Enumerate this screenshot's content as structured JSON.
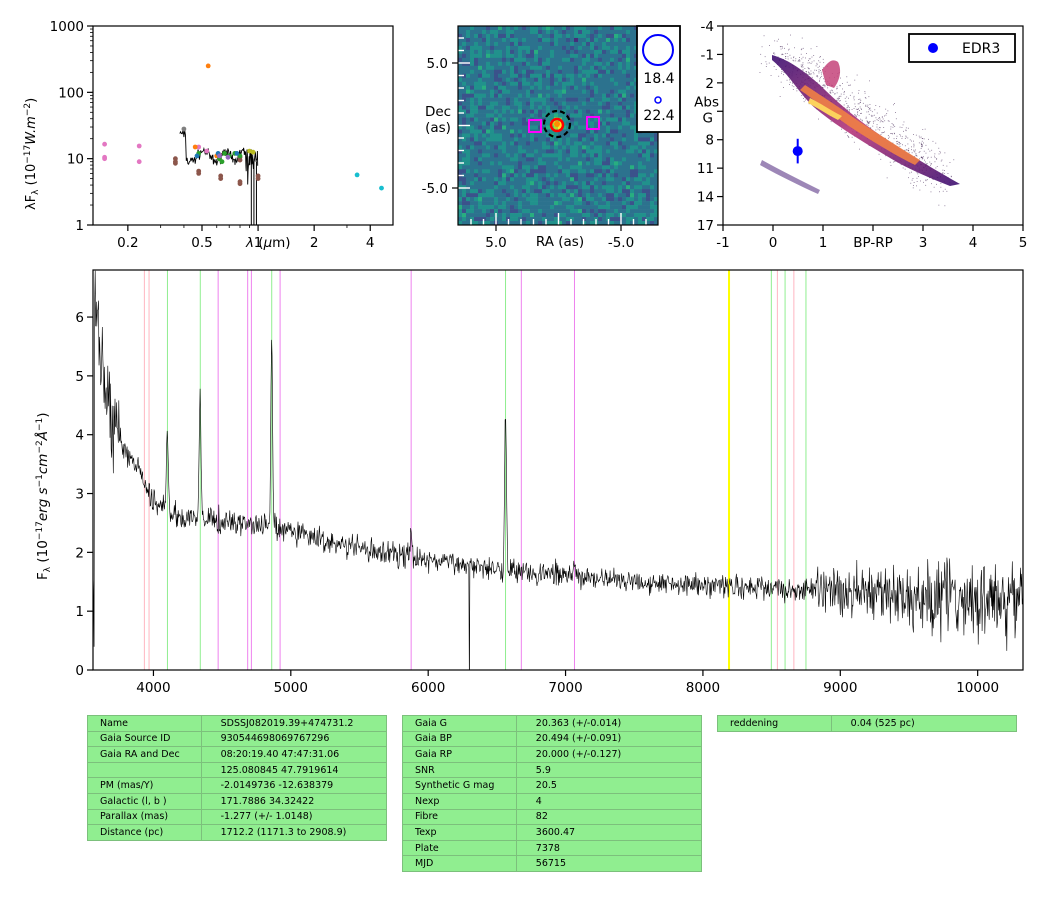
{
  "chart_data": [
    {
      "type": "scatter",
      "xscale": "log",
      "yscale": "log",
      "xlabel": "λ (μm)",
      "ylabel": "λF_λ (10^-17 W.m^-2)",
      "xlim": [
        0.13,
        5.3
      ],
      "ylim": [
        1,
        1000
      ],
      "x_ticks": [
        "0.2",
        "0.5",
        "1",
        "2",
        "4"
      ],
      "y_ticks": [
        "1",
        "10",
        "100",
        "1000"
      ],
      "series": [
        {
          "color": "#e377c2",
          "points": [
            [
              0.15,
              16.5
            ],
            [
              0.15,
              10.5
            ],
            [
              0.15,
              10
            ],
            [
              0.23,
              15.5
            ],
            [
              0.23,
              9
            ],
            [
              0.48,
              15
            ],
            [
              0.53,
              13
            ],
            [
              0.62,
              11.5
            ]
          ]
        },
        {
          "color": "#8c564b",
          "points": [
            [
              0.36,
              10
            ],
            [
              0.36,
              9
            ],
            [
              0.36,
              8.5
            ],
            [
              0.48,
              6.5
            ],
            [
              0.48,
              6
            ],
            [
              0.63,
              5.5
            ],
            [
              0.63,
              5
            ],
            [
              0.8,
              4.5
            ],
            [
              0.8,
              4.2
            ],
            [
              1.0,
              5.5
            ],
            [
              1.0,
              5
            ],
            [
              0.62,
              10
            ],
            [
              0.8,
              10.5
            ],
            [
              0.8,
              9.5
            ]
          ]
        },
        {
          "color": "#7f7f7f",
          "points": [
            [
              0.4,
              28
            ]
          ]
        },
        {
          "color": "#ff7f0e",
          "points": [
            [
              0.54,
              250
            ],
            [
              0.46,
              15
            ],
            [
              0.6,
              11
            ]
          ]
        },
        {
          "color": "#2ca02c",
          "points": [
            [
              0.48,
              12
            ],
            [
              0.62,
              10
            ],
            [
              0.66,
              12
            ],
            [
              0.7,
              11
            ],
            [
              0.75,
              12
            ],
            [
              0.8,
              11
            ],
            [
              0.64,
              9
            ]
          ]
        },
        {
          "color": "#1f77b4",
          "points": [
            [
              0.47,
              11
            ],
            [
              0.61,
              12
            ],
            [
              0.77,
              12
            ]
          ]
        },
        {
          "color": "#9467bd",
          "points": [
            [
              0.62,
              11
            ],
            [
              0.69,
              10.5
            ]
          ]
        },
        {
          "color": "#bcbd22",
          "points": [
            [
              0.9,
              13
            ],
            [
              0.94,
              12.5
            ]
          ]
        },
        {
          "color": "#17becf",
          "points": [
            [
              3.4,
              5.7
            ],
            [
              4.6,
              3.6
            ]
          ]
        }
      ]
    },
    {
      "type": "heatmap",
      "xlabel": "RA (as)",
      "ylabel": "Dec (as)",
      "x_ticks": [
        "5.0",
        "-5.0"
      ],
      "y_ticks": [
        "5.0",
        "-5.0"
      ],
      "legend": [
        {
          "label": "18.4",
          "marker": "large-circle"
        },
        {
          "label": "22.4",
          "marker": "small-circle"
        }
      ]
    },
    {
      "type": "scatter",
      "title": "",
      "xlabel": "BP-RP",
      "ylabel": "Abs G",
      "xlim": [
        -1,
        5
      ],
      "ylim": [
        17,
        -4
      ],
      "x_ticks": [
        "-1",
        "0",
        "1",
        "BP-RP",
        "3",
        "4",
        "5"
      ],
      "y_ticks": [
        "-4",
        "-1",
        "2",
        "Abs G",
        "8",
        "11",
        "14",
        "17"
      ],
      "legend_position": "top-right",
      "series": [
        {
          "name": "EDR3",
          "x": [
            0.494
          ],
          "y": [
            9.2
          ],
          "yerr": [
            1.3
          ],
          "color": "#0000ff"
        }
      ]
    },
    {
      "type": "line",
      "xlabel": "",
      "ylabel": "F_λ (10^-17 erg s^-1 cm^-2 Å^-1)",
      "xlim": [
        3560,
        10330
      ],
      "ylim": [
        0,
        6.8
      ],
      "x_ticks": [
        "4000",
        "5000",
        "6000",
        "7000",
        "8000",
        "9000",
        "10000"
      ],
      "y_ticks": [
        "0",
        "1",
        "2",
        "3",
        "4",
        "5",
        "6"
      ],
      "spectrum_anchors": [
        [
          3570,
          6.5
        ],
        [
          3620,
          5.2
        ],
        [
          3700,
          4.2
        ],
        [
          3800,
          3.7
        ],
        [
          3890,
          3.4
        ],
        [
          3960,
          3.0
        ],
        [
          4050,
          2.8
        ],
        [
          4200,
          2.6
        ],
        [
          4400,
          2.55
        ],
        [
          4600,
          2.5
        ],
        [
          4800,
          2.45
        ],
        [
          5100,
          2.3
        ],
        [
          5400,
          2.1
        ],
        [
          5800,
          1.95
        ],
        [
          6200,
          1.8
        ],
        [
          6500,
          1.75
        ],
        [
          6800,
          1.65
        ],
        [
          7200,
          1.55
        ],
        [
          7600,
          1.5
        ],
        [
          8000,
          1.45
        ],
        [
          8400,
          1.4
        ],
        [
          8800,
          1.35
        ],
        [
          9200,
          1.3
        ],
        [
          9600,
          1.25
        ],
        [
          10000,
          1.2
        ],
        [
          10320,
          1.2
        ]
      ],
      "emission_lines": [
        [
          4861,
          3.2
        ],
        [
          4340,
          2.1
        ],
        [
          4101,
          1.3
        ],
        [
          6563,
          2.7
        ],
        [
          5876,
          0.4
        ],
        [
          7065,
          0.3
        ]
      ],
      "reference_lines": [
        {
          "x": 3934,
          "color": "#ffb6c1"
        },
        {
          "x": 3968,
          "color": "#ffb6c1"
        },
        {
          "x": 4102,
          "color": "#90ee90"
        },
        {
          "x": 4341,
          "color": "#90ee90"
        },
        {
          "x": 4471,
          "color": "#ee82ee"
        },
        {
          "x": 4686,
          "color": "#ee82ee"
        },
        {
          "x": 4713,
          "color": "#ee82ee"
        },
        {
          "x": 4861,
          "color": "#90ee90"
        },
        {
          "x": 4922,
          "color": "#ee82ee"
        },
        {
          "x": 5876,
          "color": "#ee82ee"
        },
        {
          "x": 6563,
          "color": "#90ee90"
        },
        {
          "x": 6678,
          "color": "#ee82ee"
        },
        {
          "x": 7065,
          "color": "#ee82ee"
        },
        {
          "x": 8190,
          "color": "#ffff00"
        },
        {
          "x": 8498,
          "color": "#90ee90"
        },
        {
          "x": 8542,
          "color": "#ffb6c1"
        },
        {
          "x": 8662,
          "color": "#ffb6c1"
        },
        {
          "x": 8598,
          "color": "#90ee90"
        },
        {
          "x": 8750,
          "color": "#90ee90"
        }
      ]
    }
  ],
  "tables": {
    "t1": [
      [
        "Name",
        "SDSSJ082019.39+474731.2"
      ],
      [
        "Gaia Source ID",
        "930544698069767296"
      ],
      [
        "Gaia RA and Dec",
        "08:20:19.40    47:47:31.06"
      ],
      [
        "",
        "125.080845    47.7919614"
      ],
      [
        "PM (mas/Y)",
        "-2.0149736    -12.638379"
      ],
      [
        "Galactic (l, b )",
        "171.7886    34.32422"
      ],
      [
        "Parallax (mas)",
        "-1.277 (+/- 1.0148)"
      ],
      [
        "Distance (pc)",
        "1712.2 (1171.3 to 2908.9)"
      ]
    ],
    "t2": [
      [
        "Gaia G",
        "20.363 (+/-0.014)"
      ],
      [
        "Gaia BP",
        "20.494 (+/-0.091)"
      ],
      [
        "Gaia RP",
        "20.000 (+/-0.127)"
      ],
      [
        "SNR",
        "5.9"
      ],
      [
        "Synthetic G mag",
        "20.5"
      ],
      [
        "Nexp",
        "4"
      ],
      [
        "Fibre",
        "82"
      ],
      [
        "Texp",
        "3600.47"
      ],
      [
        "Plate",
        "7378"
      ],
      [
        "MJD",
        "56715"
      ]
    ],
    "t3": [
      [
        "reddening",
        "0.04 (525 pc)"
      ]
    ]
  }
}
